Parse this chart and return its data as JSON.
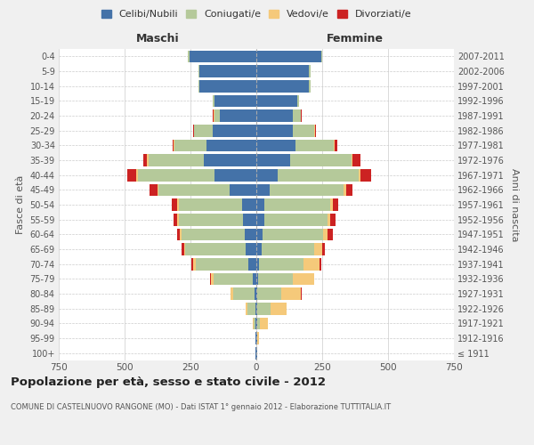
{
  "age_groups": [
    "100+",
    "95-99",
    "90-94",
    "85-89",
    "80-84",
    "75-79",
    "70-74",
    "65-69",
    "60-64",
    "55-59",
    "50-54",
    "45-49",
    "40-44",
    "35-39",
    "30-34",
    "25-29",
    "20-24",
    "15-19",
    "10-14",
    "5-9",
    "0-4"
  ],
  "birth_years": [
    "≤ 1911",
    "1912-1916",
    "1917-1921",
    "1922-1926",
    "1927-1931",
    "1932-1936",
    "1937-1941",
    "1942-1946",
    "1947-1951",
    "1952-1956",
    "1957-1961",
    "1962-1966",
    "1967-1971",
    "1972-1976",
    "1977-1981",
    "1982-1986",
    "1987-1991",
    "1992-1996",
    "1997-2001",
    "2002-2006",
    "2007-2011"
  ],
  "male": {
    "celibi": [
      2,
      2,
      3,
      5,
      8,
      12,
      30,
      40,
      45,
      50,
      55,
      100,
      160,
      200,
      190,
      165,
      140,
      160,
      215,
      215,
      255
    ],
    "coniugati": [
      1,
      2,
      8,
      30,
      80,
      150,
      200,
      230,
      240,
      245,
      240,
      270,
      290,
      210,
      120,
      70,
      20,
      5,
      5,
      5,
      5
    ],
    "vedovi": [
      0,
      0,
      2,
      5,
      10,
      10,
      10,
      5,
      5,
      5,
      5,
      5,
      5,
      5,
      3,
      2,
      2,
      0,
      0,
      0,
      0
    ],
    "divorziati": [
      0,
      0,
      0,
      0,
      0,
      3,
      8,
      10,
      10,
      15,
      20,
      30,
      35,
      15,
      5,
      2,
      2,
      0,
      0,
      0,
      0
    ]
  },
  "female": {
    "nubili": [
      2,
      2,
      3,
      5,
      5,
      8,
      10,
      20,
      25,
      30,
      30,
      50,
      80,
      130,
      150,
      140,
      140,
      155,
      200,
      200,
      245
    ],
    "coniugate": [
      1,
      2,
      10,
      50,
      90,
      130,
      170,
      200,
      230,
      240,
      250,
      280,
      310,
      230,
      145,
      80,
      30,
      8,
      5,
      5,
      5
    ],
    "vedove": [
      0,
      5,
      30,
      60,
      75,
      80,
      60,
      30,
      15,
      10,
      10,
      10,
      5,
      5,
      3,
      2,
      0,
      0,
      0,
      0,
      0
    ],
    "divorziate": [
      0,
      0,
      0,
      0,
      3,
      3,
      5,
      10,
      20,
      20,
      20,
      25,
      40,
      30,
      10,
      3,
      2,
      0,
      0,
      0,
      0
    ]
  },
  "colors": {
    "celibi": "#4472a8",
    "coniugati": "#b5c99a",
    "vedovi": "#f5c97a",
    "divorziati": "#cc2222"
  },
  "xlim": 750,
  "title": "Popolazione per età, sesso e stato civile - 2012",
  "subtitle": "COMUNE DI CASTELNUOVO RANGONE (MO) - Dati ISTAT 1° gennaio 2012 - Elaborazione TUTTITALIA.IT",
  "xlabel_left": "Maschi",
  "xlabel_right": "Femmine",
  "ylabel_left": "Fasce di età",
  "ylabel_right": "Anni di nascita",
  "legend_labels": [
    "Celibi/Nubili",
    "Coniugati/e",
    "Vedovi/e",
    "Divorziati/e"
  ],
  "bg_color": "#f0f0f0",
  "plot_bg_color": "#ffffff"
}
